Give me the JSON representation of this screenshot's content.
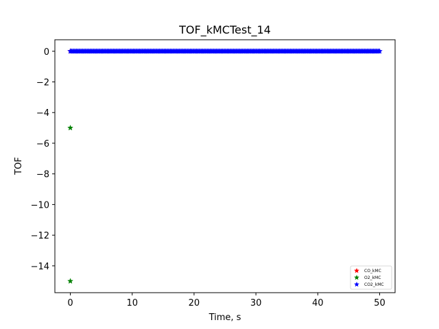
{
  "chart_data": {
    "type": "scatter",
    "title": "TOF_kMCTest_14",
    "xlabel": "Time, s",
    "ylabel": "TOF",
    "xlim": [
      -2.5,
      52.5
    ],
    "ylim": [
      -15.75,
      0.75
    ],
    "xticks": [
      0,
      10,
      20,
      30,
      40,
      50
    ],
    "yticks": [
      0,
      -2,
      -4,
      -6,
      -8,
      -10,
      -12,
      -14
    ],
    "grid": false,
    "legend_position": "lower right",
    "marker": "star",
    "series": [
      {
        "name": "CO_kMC",
        "color": "#ff0000",
        "points": [
          [
            0,
            0
          ]
        ],
        "dense_range": null
      },
      {
        "name": "O2_kMC",
        "color": "#008000",
        "points": [
          [
            0,
            -5
          ],
          [
            0,
            -15
          ]
        ],
        "dense_range": null
      },
      {
        "name": "CO2_kMC",
        "color": "#0000ff",
        "points": [],
        "dense_range": {
          "x_start": 0,
          "x_end": 50,
          "step": 0.2,
          "y": 0
        }
      }
    ]
  }
}
